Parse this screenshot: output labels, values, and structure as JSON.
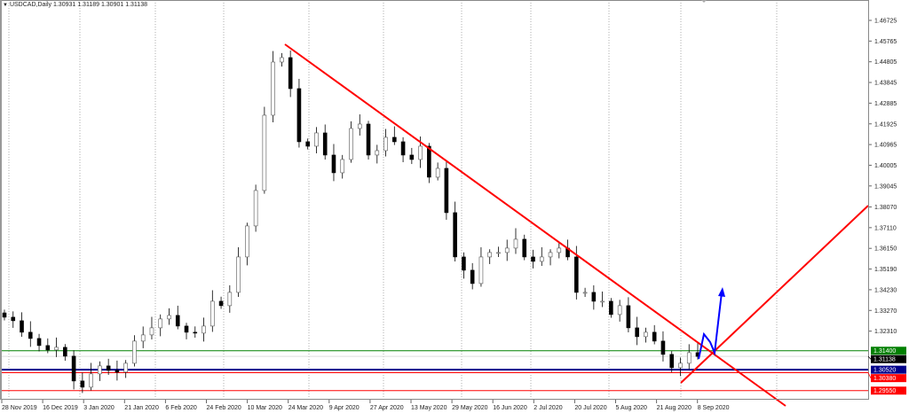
{
  "header": {
    "symbol": "USDCAD,Daily",
    "ohlc": "1.30931 1.31189 1.30901 1.31138"
  },
  "colors": {
    "bull_body": "#ffffff",
    "bear_body": "#000000",
    "trendline": "#ff0000",
    "projection": "#0000ff",
    "level_green": "#008000",
    "level_blue": "#00008b",
    "level_red": "#ff0000",
    "current_price": "#000000"
  },
  "chart_data": {
    "type": "candlestick",
    "title": "USDCAD,Daily",
    "ylim": [
      1.2925,
      1.4765
    ],
    "y_ticks": [
      "1.46725",
      "1.45765",
      "1.44805",
      "1.43845",
      "1.42885",
      "1.41925",
      "1.40965",
      "1.40005",
      "1.39045",
      "1.38070",
      "1.37110",
      "1.36150",
      "1.35190",
      "1.34230",
      "1.33270",
      "1.32310"
    ],
    "x_ticks": [
      "28 Nov 2019",
      "16 Dec 2019",
      "3 Jan 2020",
      "21 Jan 2020",
      "6 Feb 2020",
      "24 Feb 2020",
      "10 Mar 2020",
      "24 Mar 2020",
      "9 Apr 2020",
      "27 Apr 2020",
      "13 May 2020",
      "29 May 2020",
      "16 Jun 2020",
      "2 Jul 2020",
      "20 Jul 2020",
      "5 Aug 2020",
      "21 Aug 2020",
      "8 Sep 2020"
    ],
    "closes": [
      1.32956,
      1.32792,
      1.32258,
      1.3197,
      1.31641,
      1.31436,
      1.31559,
      1.31148,
      1.29997,
      1.2971,
      1.30326,
      1.30696,
      1.3049,
      1.30408,
      1.30819,
      1.31847,
      1.32134,
      1.32463,
      1.32874,
      1.33039,
      1.32545,
      1.32258,
      1.32217,
      1.32545,
      1.33696,
      1.33491,
      1.34107,
      1.35751,
      1.3719,
      1.38834,
      1.42327,
      1.44793,
      1.44999,
      1.4356,
      1.41094,
      1.40889,
      1.41505,
      1.40478,
      1.39656,
      1.40272,
      1.41711,
      1.41916,
      1.40478,
      1.40683,
      1.413,
      1.41094,
      1.40478,
      1.40272,
      1.40889,
      1.3945,
      1.39861,
      1.37806,
      1.35751,
      1.35135,
      1.34518,
      1.35751,
      1.35957,
      1.35957,
      1.36162,
      1.36573,
      1.35751,
      1.35546,
      1.35751,
      1.35957,
      1.36162,
      1.35751,
      1.34107,
      1.34107,
      1.33696,
      1.33696,
      1.3308,
      1.33491,
      1.32463,
      1.32052,
      1.32258,
      1.31847,
      1.3123,
      1.30614,
      1.30819,
      1.31312,
      1.31138
    ],
    "levels": [
      {
        "label": "1.31400",
        "price": 1.314,
        "color": "#008000"
      },
      {
        "label": "1.31138",
        "price": 1.31138,
        "color": "#000000"
      },
      {
        "label": "1.30520",
        "price": 1.3052,
        "color": "#00008b"
      },
      {
        "label": "1.30380",
        "price": 1.3038,
        "color": "#ff0000"
      },
      {
        "label": "1.29550",
        "price": 1.2955,
        "color": "#ff0000"
      }
    ],
    "grid": "vertical-dashed"
  }
}
